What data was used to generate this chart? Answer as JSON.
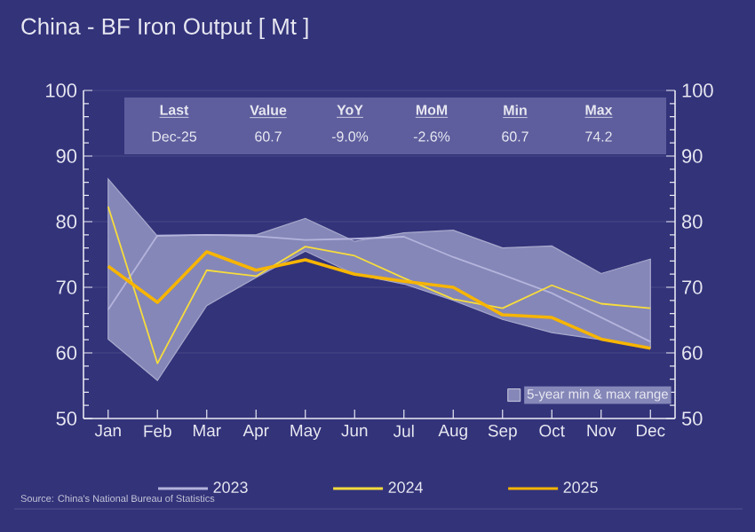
{
  "chart_data": {
    "type": "line",
    "title": "China - BF Iron Output [ Mt ]",
    "categories": [
      "Jan",
      "Feb",
      "Mar",
      "Apr",
      "May",
      "Jun",
      "Jul",
      "Aug",
      "Sep",
      "Oct",
      "Nov",
      "Dec"
    ],
    "series": [
      {
        "name": "5-year min & max range",
        "type": "area",
        "color": "#8587b8",
        "values": [
          null,
          null,
          null,
          null,
          null,
          null,
          null,
          null,
          null,
          null,
          null,
          null
        ],
        "lower": [
          62.1,
          55.8,
          67.2,
          71.5,
          75.5,
          72.0,
          70.5,
          68.0,
          65.1,
          63.1,
          62.0,
          60.7
        ],
        "upper": [
          86.5,
          77.8,
          78.0,
          78.0,
          80.5,
          77.0,
          78.3,
          78.7,
          76.0,
          76.3,
          72.1,
          74.3
        ]
      },
      {
        "name": "2023",
        "color": "#b4b4dc",
        "values": [
          66.6,
          77.9,
          78.0,
          77.8,
          77.2,
          77.4,
          77.7,
          74.6,
          71.9,
          69.1,
          65.4,
          61.7
        ]
      },
      {
        "name": "2024",
        "color": "#f7dc3c",
        "values": [
          82.3,
          58.4,
          72.6,
          71.7,
          76.2,
          74.8,
          71.4,
          68.2,
          66.8,
          70.3,
          67.5,
          66.8
        ]
      },
      {
        "name": "2025",
        "color": "#f7b500",
        "values": [
          73.2,
          67.7,
          75.4,
          72.6,
          74.2,
          72.0,
          70.9,
          70.0,
          65.8,
          65.4,
          62.1,
          60.7
        ]
      }
    ],
    "ylim": [
      50,
      100
    ],
    "yticks": [
      50,
      60,
      70,
      80,
      90,
      100
    ],
    "y2lim": [
      50,
      100
    ],
    "y2ticks": [
      50,
      60,
      70,
      80,
      90,
      100
    ],
    "grid": "y",
    "legend": "bottom",
    "annotations": [
      "Last",
      "Value",
      "YoY",
      "MoM",
      "Min",
      "Max",
      "Dec-25",
      "60.7",
      "-9.0%",
      "-2.6%",
      "60.7",
      "74.2",
      "Source: China's National Bureau of Statistics"
    ]
  }
}
